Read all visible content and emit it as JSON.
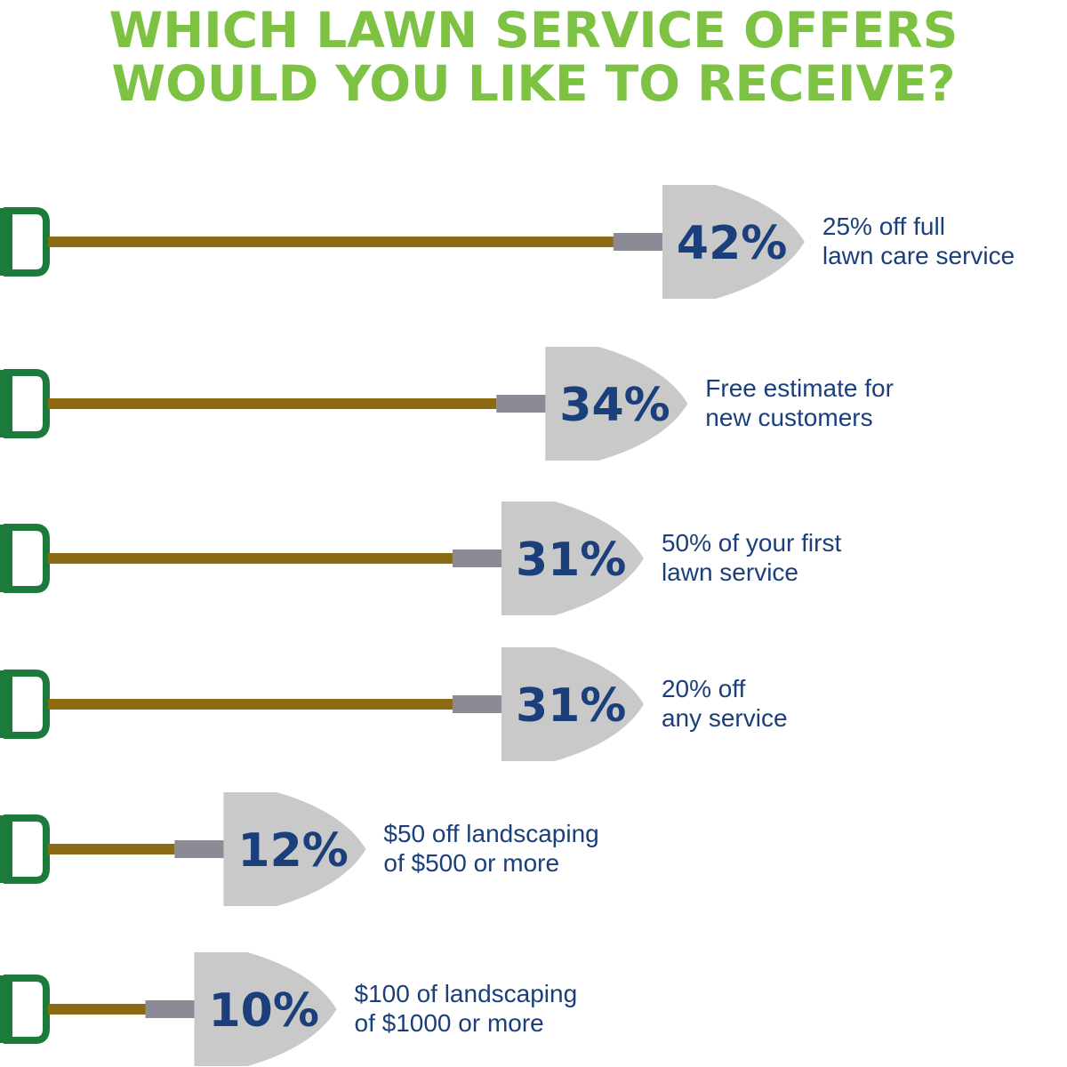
{
  "title": {
    "line1": "WHICH LAWN SERVICE OFFERS",
    "line2": "WOULD YOU LIKE TO RECEIVE?"
  },
  "colors": {
    "title": "#7dc242",
    "handle": "#1c7a3a",
    "shaft": "#8c6a12",
    "collar": "#8c8a94",
    "blade": "#c9c9c9",
    "text": "#1a3f7a"
  },
  "chart_data": {
    "type": "bar",
    "title": "WHICH LAWN SERVICE OFFERS WOULD YOU LIKE TO RECEIVE?",
    "unit": "%",
    "categories": [
      "25% off full lawn care service",
      "Free estimate for new customers",
      "50% of your first lawn service",
      "20% off any service",
      "$50 off landscaping of $500 or more",
      "$100 of landscaping of $1000 or more"
    ],
    "values": [
      42,
      34,
      31,
      31,
      12,
      10
    ],
    "value_labels": [
      "42%",
      "34%",
      "31%",
      "31%",
      "12%",
      "10%"
    ]
  },
  "rows": [
    {
      "value_label": "42%",
      "line1": "25% off full",
      "line2": "lawn care service"
    },
    {
      "value_label": "34%",
      "line1": "Free estimate for",
      "line2": "new customers"
    },
    {
      "value_label": "31%",
      "line1": "50% of your first",
      "line2": "lawn service"
    },
    {
      "value_label": "31%",
      "line1": "20% off",
      "line2": "any service"
    },
    {
      "value_label": "12%",
      "line1": "$50 off landscaping",
      "line2": "of $500 or more"
    },
    {
      "value_label": "10%",
      "line1": "$100 of landscaping",
      "line2": "of $1000 or more"
    }
  ]
}
